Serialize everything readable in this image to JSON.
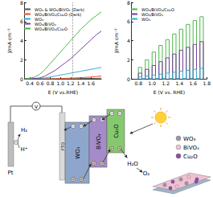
{
  "chart_data": [
    {
      "type": "line",
      "x_label": "E (V vs.RHE)",
      "y_label": "J/mA cm⁻²",
      "x": [
        0.3,
        0.4,
        0.5,
        0.6,
        0.7,
        0.8,
        0.9,
        1.0,
        1.1,
        1.2,
        1.3,
        1.4,
        1.5,
        1.6,
        1.7,
        1.8
      ],
      "series": [
        {
          "name": "WO₃ & WO₃/BiVO₄ (Dark)",
          "color": "#555555",
          "values": [
            0,
            0,
            0,
            0,
            0,
            0,
            0,
            0,
            0,
            0,
            0.02,
            0.03,
            0.04,
            0.05,
            0.06,
            0.08
          ]
        },
        {
          "name": "WO₃/BiVO₄/Cu₂O (Dark)",
          "color": "#e2562b",
          "values": [
            0,
            0,
            0,
            0,
            0,
            0,
            0.02,
            0.04,
            0.06,
            0.08,
            0.1,
            0.13,
            0.16,
            0.2,
            0.25,
            0.3
          ]
        },
        {
          "name": "WO₃",
          "color": "#35aed6",
          "values": [
            0,
            0,
            0,
            0.05,
            0.1,
            0.2,
            0.3,
            0.4,
            0.5,
            0.6,
            0.7,
            0.8,
            0.9,
            1.0,
            1.1,
            1.2
          ]
        },
        {
          "name": "WO₃/BiVO₄",
          "color": "#7b3fa0",
          "values": [
            0,
            0,
            0.05,
            0.1,
            0.3,
            0.6,
            0.9,
            1.3,
            1.7,
            2.1,
            2.6,
            3.1,
            3.6,
            4.1,
            4.6,
            5.0
          ]
        },
        {
          "name": "WO₃/BiVO₄/Cu₂O",
          "color": "#4cb848",
          "values": [
            0,
            0.05,
            0.2,
            0.5,
            1.0,
            1.6,
            2.2,
            2.8,
            3.4,
            4.0,
            4.6,
            5.2,
            5.7,
            6.2,
            6.6,
            7.0
          ]
        }
      ],
      "reference_x": 1.23,
      "xlim": [
        0.3,
        1.8
      ],
      "xticks": [
        0.4,
        0.6,
        0.8,
        {
          "value": 1,
          "label": "1.0"
        },
        1.2,
        1.4,
        1.6
      ],
      "ylim": [
        0,
        8
      ],
      "yticks": [
        0,
        2,
        4,
        6,
        8
      ],
      "grid": false,
      "legend": "upper left"
    },
    {
      "type": "line",
      "x_label": "E (V vs. RHE)",
      "y_label": "J/mA cm⁻²",
      "x": [
        0.8,
        0.8,
        0.85,
        0.85,
        0.9,
        0.9,
        0.95,
        0.95,
        1.0,
        1.0,
        1.05,
        1.05,
        1.1,
        1.1,
        1.15,
        1.15,
        1.2,
        1.2,
        1.25,
        1.25,
        1.3,
        1.3,
        1.35,
        1.35,
        1.4,
        1.4,
        1.45,
        1.45,
        1.5,
        1.5,
        1.55,
        1.55,
        1.6,
        1.6,
        1.65,
        1.65,
        1.7,
        1.7,
        1.75,
        1.75
      ],
      "series": [
        {
          "name": "WO₃/BiVO₄/Cu₂O",
          "color": "#4cb848",
          "values": [
            0,
            1.2,
            1.2,
            0,
            0,
            2.0,
            2.0,
            0,
            0,
            2.8,
            2.8,
            0,
            0,
            3.5,
            3.5,
            0,
            0,
            4.1,
            4.1,
            0,
            0,
            4.7,
            4.7,
            0,
            0,
            5.2,
            5.2,
            0,
            0,
            5.7,
            5.7,
            0,
            0,
            6.1,
            6.1,
            0,
            0,
            6.5,
            6.5,
            0
          ]
        },
        {
          "name": "WO₃/BiVO₄",
          "color": "#7b3fa0",
          "values": [
            0,
            0.6,
            0.6,
            0,
            0,
            1.0,
            1.0,
            0,
            0,
            1.4,
            1.4,
            0,
            0,
            1.8,
            1.8,
            0,
            0,
            2.2,
            2.2,
            0,
            0,
            2.6,
            2.6,
            0,
            0,
            3.0,
            3.0,
            0,
            0,
            3.3,
            3.3,
            0,
            0,
            3.6,
            3.6,
            0,
            0,
            3.9,
            3.9,
            0
          ]
        },
        {
          "name": "WO₃",
          "color": "#35aed6",
          "values": [
            0,
            0.2,
            0.2,
            0,
            0,
            0.3,
            0.3,
            0,
            0,
            0.4,
            0.4,
            0,
            0,
            0.5,
            0.5,
            0,
            0,
            0.6,
            0.6,
            0,
            0,
            0.7,
            0.7,
            0,
            0,
            0.8,
            0.8,
            0,
            0,
            0.9,
            0.9,
            0,
            0,
            1.0,
            1.0,
            0,
            0,
            1.1,
            1.1,
            0
          ]
        }
      ],
      "xlim": [
        0.7,
        1.8
      ],
      "xticks": [
        0.8,
        {
          "value": 1,
          "label": "1.0"
        },
        1.2,
        1.4,
        1.6,
        1.8
      ],
      "ylim": [
        0,
        8
      ],
      "yticks": [
        0,
        2,
        4,
        6,
        8
      ],
      "grid": false,
      "legend": "upper left"
    }
  ],
  "diagram": {
    "cathode": "Pt",
    "cathode_species": [
      "H₂",
      "H⁺"
    ],
    "meter": "V",
    "substrate": "FTO",
    "layers": [
      {
        "name": "WO₃",
        "color": "#8fa6cc"
      },
      {
        "name": "BiVO₄",
        "color": "#a58cc8"
      },
      {
        "name": "Cu₂O",
        "color": "#86c86e"
      }
    ],
    "anode_species": [
      "H₂O",
      "O₂"
    ],
    "legend": [
      {
        "name": "WO₃",
        "color": "#9a9aa6"
      },
      {
        "name": "BiVO₄",
        "color": "#f2c2d2"
      },
      {
        "name": "Cu₂O",
        "color": "#8a4fa8"
      }
    ]
  }
}
